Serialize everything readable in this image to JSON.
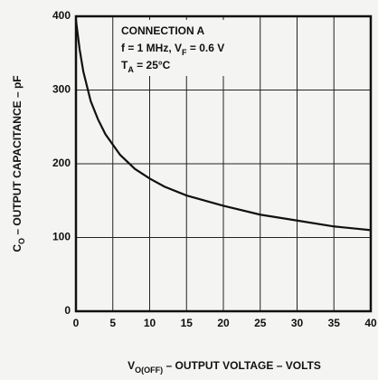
{
  "chart_data": {
    "type": "line",
    "x_label": [
      "V",
      "O(OFF)",
      " – OUTPUT VOLTAGE – VOLTS"
    ],
    "y_label": [
      "C",
      "O",
      " – OUTPUT CAPACITANCE – pF"
    ],
    "annotations": [
      [
        "CONNECTION A"
      ],
      [
        "f = 1 MHz, V",
        "F",
        " = 0.6 V"
      ],
      [
        "T",
        "A",
        " = 25°C"
      ]
    ],
    "x": [
      0,
      0.5,
      1,
      2,
      3,
      4,
      5,
      6,
      8,
      10,
      12,
      15,
      20,
      25,
      30,
      35,
      40
    ],
    "series": [
      {
        "color": "#111111",
        "values": [
          395,
          355,
          325,
          285,
          260,
          240,
          226,
          212,
          193,
          180,
          169,
          157,
          143,
          131,
          123,
          115,
          110
        ]
      }
    ],
    "xlim": [
      0,
      40
    ],
    "xticks": [
      0,
      5,
      10,
      15,
      20,
      25,
      30,
      35,
      40
    ],
    "ylim": [
      0,
      400
    ],
    "yticks": [
      0,
      100,
      200,
      300,
      400
    ],
    "grid": true
  }
}
